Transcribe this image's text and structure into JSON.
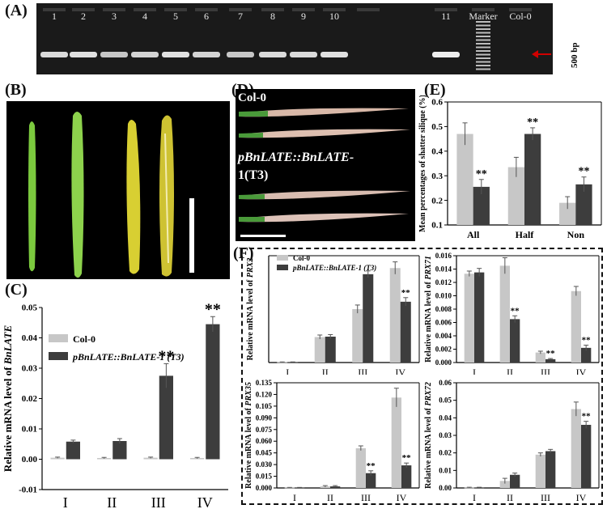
{
  "panels": {
    "A": "(A)",
    "B": "(B)",
    "C": "(C)",
    "D": "(D)",
    "E": "(E)",
    "F": "(F)"
  },
  "gel": {
    "lanes": [
      "1",
      "2",
      "3",
      "4",
      "5",
      "6",
      "7",
      "8",
      "9",
      "10",
      "",
      "11",
      "Marker",
      "Col-0"
    ],
    "band_intensity": [
      0.75,
      0.8,
      0.6,
      0.7,
      0.8,
      0.7,
      0.6,
      0.75,
      0.75,
      0.8,
      0,
      0.9,
      0,
      0
    ],
    "size_label": "500 bp",
    "arrow_color": "#d00000"
  },
  "photo_D": {
    "label1": "Col-0",
    "label2": "pBnLATE::BnLATE-",
    "label3": "1(T3)"
  },
  "colors": {
    "col0": "#c7c7c7",
    "transgenic": "#3d3d3d"
  },
  "chart_data": [
    {
      "id": "C",
      "type": "bar",
      "ylabel_prefix": "Relative mRNA level of ",
      "ylabel_gene": "BnLATE",
      "categories": [
        "I",
        "II",
        "III",
        "IV"
      ],
      "ylim": [
        -0.01,
        0.05
      ],
      "ticks": [
        "-0.01",
        "0.00",
        "0.01",
        "0.02",
        "0.03",
        "0.04",
        "0.05"
      ],
      "series": [
        {
          "name": "Col-0",
          "values": [
            0.0005,
            0.0004,
            0.0005,
            0.0004
          ],
          "err": [
            0.0002,
            0.0002,
            0.0002,
            0.0002
          ]
        },
        {
          "name": "pBnLATE::BnLATE-1 (T3)",
          "values": [
            0.0058,
            0.006,
            0.0275,
            0.0445
          ],
          "err": [
            0.0005,
            0.0008,
            0.004,
            0.0025
          ]
        }
      ],
      "sig": [
        "",
        "",
        "**",
        "**"
      ]
    },
    {
      "id": "E",
      "type": "bar",
      "ylabel": "Mean percentages of shatter silique (%)",
      "categories": [
        "All",
        "Half",
        "Non"
      ],
      "ylim": [
        0.1,
        0.6
      ],
      "ticks": [
        "0.1",
        "0.2",
        "0.3",
        "0.4",
        "0.5",
        "0.6"
      ],
      "series": [
        {
          "name": "Col-0",
          "values": [
            0.47,
            0.335,
            0.19
          ],
          "err": [
            0.045,
            0.04,
            0.025
          ]
        },
        {
          "name": "pBnLATE::BnLATE-1 (T3)",
          "values": [
            0.255,
            0.47,
            0.265
          ],
          "err": [
            0.03,
            0.025,
            0.03
          ]
        }
      ],
      "sig": [
        "**",
        "**",
        "**"
      ]
    },
    {
      "id": "F1",
      "type": "bar",
      "ylabel_prefix": "Relative mRNA level of ",
      "ylabel_gene": "PRX2",
      "categories": [
        "I",
        "II",
        "III",
        "IV"
      ],
      "ylim": [
        0,
        2.6
      ],
      "ticks": [],
      "series": [
        {
          "name": "Col-0",
          "values": [
            0.01,
            0.62,
            1.3,
            2.3
          ],
          "err": [
            0.005,
            0.05,
            0.1,
            0.15
          ]
        },
        {
          "name": "pBnLATE::BnLATE-1 (T3)",
          "values": [
            0.01,
            0.63,
            2.15,
            1.48
          ],
          "err": [
            0.005,
            0.05,
            0.08,
            0.1
          ]
        }
      ],
      "sig": [
        "",
        "",
        "",
        "**"
      ]
    },
    {
      "id": "F2",
      "type": "bar",
      "ylabel_prefix": "Relative mRNA level of ",
      "ylabel_gene": "PRX71",
      "categories": [
        "I",
        "II",
        "III",
        "IV"
      ],
      "ylim": [
        0,
        0.016
      ],
      "ticks": [
        "0.000",
        "0.002",
        "0.004",
        "0.006",
        "0.008",
        "0.010",
        "0.012",
        "0.014",
        "0.016"
      ],
      "series": [
        {
          "name": "Col-0",
          "values": [
            0.0133,
            0.0145,
            0.0015,
            0.0107
          ],
          "err": [
            0.0004,
            0.0012,
            0.0002,
            0.0007
          ]
        },
        {
          "name": "pBnLATE::BnLATE-1 (T3)",
          "values": [
            0.0135,
            0.0065,
            0.0005,
            0.0022
          ],
          "err": [
            0.0006,
            0.0005,
            0.0001,
            0.0004
          ]
        }
      ],
      "sig": [
        "",
        "**",
        "**",
        "**"
      ]
    },
    {
      "id": "F3",
      "type": "bar",
      "ylabel_prefix": "Relative mRNA level of ",
      "ylabel_gene": "PRX35",
      "categories": [
        "I",
        "II",
        "III",
        "IV"
      ],
      "ylim": [
        0,
        0.135
      ],
      "ticks": [
        "0.000",
        "0.015",
        "0.030",
        "0.045",
        "0.060",
        "0.075",
        "0.090",
        "0.105",
        "0.120",
        "0.135"
      ],
      "series": [
        {
          "name": "Col-0",
          "values": [
            0.0005,
            0.002,
            0.051,
            0.116
          ],
          "err": [
            0.0002,
            0.001,
            0.003,
            0.012
          ]
        },
        {
          "name": "pBnLATE::BnLATE-1 (T3)",
          "values": [
            0.0005,
            0.002,
            0.019,
            0.029
          ],
          "err": [
            0.0002,
            0.001,
            0.003,
            0.003
          ]
        }
      ],
      "sig": [
        "",
        "",
        "**",
        "**"
      ]
    },
    {
      "id": "F4",
      "type": "bar",
      "ylabel_prefix": "Relative mRNA level of ",
      "ylabel_gene": "PRX72",
      "categories": [
        "I",
        "II",
        "III",
        "IV"
      ],
      "ylim": [
        0,
        0.06
      ],
      "ticks": [
        "0.00",
        "0.01",
        "0.02",
        "0.03",
        "0.04",
        "0.05",
        "0.06"
      ],
      "series": [
        {
          "name": "Col-0",
          "values": [
            0.0002,
            0.004,
            0.019,
            0.045
          ],
          "err": [
            0.0002,
            0.0015,
            0.001,
            0.004
          ]
        },
        {
          "name": "pBnLATE::BnLATE-1 (T3)",
          "values": [
            0.0002,
            0.0075,
            0.021,
            0.036
          ],
          "err": [
            0.0002,
            0.001,
            0.001,
            0.002
          ]
        }
      ],
      "sig": [
        "",
        "",
        "",
        "**"
      ]
    }
  ]
}
